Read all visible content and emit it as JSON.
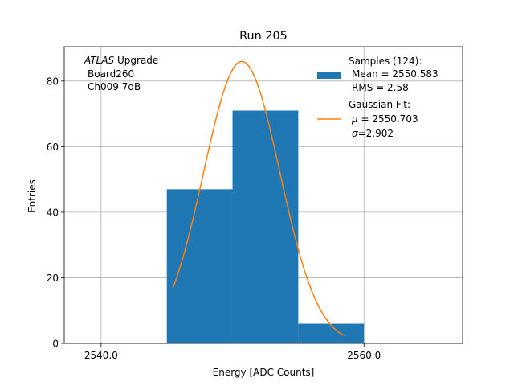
{
  "chart_data": {
    "type": "histogram",
    "title": "Run 205",
    "xlabel": "Energy [ADC Counts]",
    "ylabel": "Entries",
    "xlim": [
      2537.2,
      2567.5
    ],
    "ylim": [
      0,
      90.5
    ],
    "xticks": [
      2540,
      2560
    ],
    "xtick_labels": [
      "2540.0",
      "2560.0"
    ],
    "yticks": [
      0,
      20,
      40,
      60,
      80
    ],
    "ytick_labels": [
      "0",
      "20",
      "40",
      "60",
      "80"
    ],
    "grid": true,
    "bins": [
      {
        "x0": 2545,
        "x1": 2550,
        "count": 47
      },
      {
        "x0": 2550,
        "x1": 2555,
        "count": 71
      },
      {
        "x0": 2555,
        "x1": 2560,
        "count": 6
      }
    ],
    "bar_color": "#1f77b4",
    "fit": {
      "name": "Gaussian Fit",
      "mu": 2550.703,
      "sigma": 2.902,
      "amplitude": 86,
      "x_range": [
        2545.5,
        2558.5
      ],
      "color": "#ff7f0e"
    },
    "annotation": {
      "italic": "ATLAS",
      "rest": " Upgrade",
      "line2": "Board260",
      "line3": "Ch009 7dB"
    },
    "legend": {
      "position": "top-right",
      "samples_title": "Samples (124):",
      "samples_mean": "Mean = 2550.583",
      "samples_rms": "RMS = 2.58",
      "fit_title": "Gaussian Fit:",
      "fit_mu_symbol": "μ",
      "fit_mu_value": " = 2550.703",
      "fit_sigma_symbol": "σ",
      "fit_sigma_value": "=2.902"
    }
  }
}
